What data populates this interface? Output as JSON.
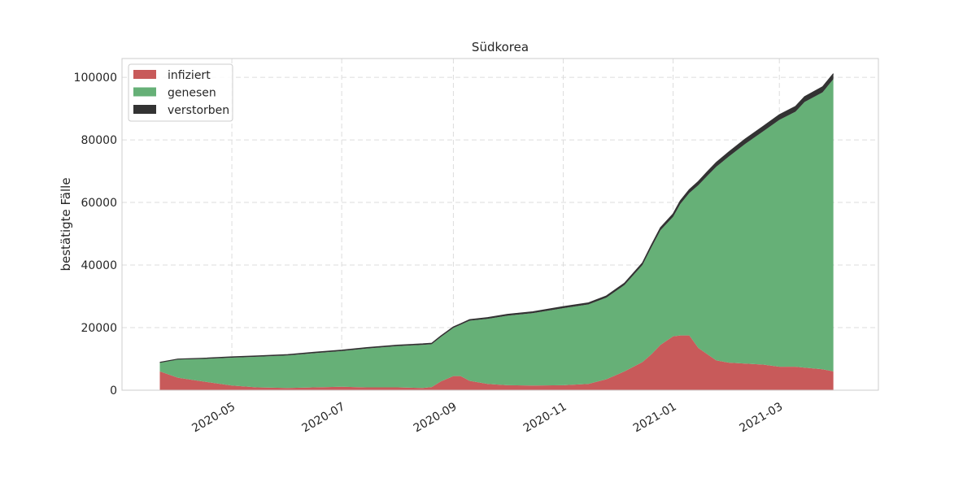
{
  "chart_data": {
    "type": "area",
    "stacked": true,
    "title": "Südkorea",
    "xlabel": "",
    "ylabel": "bestätigte Fälle",
    "x_range": [
      "2020-03-01",
      "2021-04-25"
    ],
    "ylim": [
      0,
      106000
    ],
    "yticks": [
      0,
      20000,
      40000,
      60000,
      80000,
      100000
    ],
    "ytick_labels": [
      "0",
      "20000",
      "40000",
      "60000",
      "80000",
      "100000"
    ],
    "xticks": [
      "2020-05-01",
      "2020-07-01",
      "2020-09-01",
      "2020-11-01",
      "2021-01-01",
      "2021-03-01"
    ],
    "xtick_labels": [
      "2020-05",
      "2020-07",
      "2020-09",
      "2020-11",
      "2021-01",
      "2021-03"
    ],
    "grid": true,
    "legend_position": "top-left",
    "dates": [
      "2020-03-22",
      "2020-04-01",
      "2020-04-15",
      "2020-05-01",
      "2020-05-15",
      "2020-06-01",
      "2020-06-15",
      "2020-07-01",
      "2020-07-15",
      "2020-08-01",
      "2020-08-15",
      "2020-08-20",
      "2020-08-25",
      "2020-09-01",
      "2020-09-05",
      "2020-09-10",
      "2020-09-20",
      "2020-10-01",
      "2020-10-15",
      "2020-11-01",
      "2020-11-15",
      "2020-11-25",
      "2020-12-05",
      "2020-12-15",
      "2020-12-20",
      "2020-12-25",
      "2021-01-01",
      "2021-01-05",
      "2021-01-10",
      "2021-01-15",
      "2021-01-20",
      "2021-01-25",
      "2021-02-01",
      "2021-02-10",
      "2021-02-20",
      "2021-03-01",
      "2021-03-10",
      "2021-03-15",
      "2021-03-25",
      "2021-03-31"
    ],
    "series": [
      {
        "name": "infiziert",
        "color": "#c85a5a",
        "values": [
          6000,
          4000,
          2800,
          1500,
          900,
          700,
          900,
          1100,
          900,
          900,
          700,
          1000,
          2800,
          4500,
          4500,
          3000,
          2000,
          1600,
          1500,
          1600,
          2000,
          3500,
          6000,
          9000,
          11500,
          14500,
          17200,
          17500,
          17500,
          13500,
          11500,
          9500,
          8800,
          8500,
          8200,
          7500,
          7500,
          7200,
          6700,
          6000
        ]
      },
      {
        "name": "genesen",
        "color": "#66b077",
        "values": [
          2800,
          5800,
          7200,
          8900,
          9800,
          10400,
          10900,
          11400,
          12400,
          13200,
          13800,
          13700,
          14200,
          15400,
          16400,
          19200,
          20800,
          22200,
          23100,
          24600,
          25400,
          26100,
          27600,
          31000,
          34200,
          36600,
          38200,
          42000,
          45500,
          52000,
          57000,
          61900,
          65900,
          70200,
          74500,
          78900,
          81500,
          84900,
          88500,
          93400
        ]
      },
      {
        "name": "verstorben",
        "color": "#333333",
        "values": [
          100,
          150,
          200,
          250,
          260,
          270,
          280,
          290,
          300,
          300,
          300,
          310,
          320,
          330,
          340,
          360,
          390,
          420,
          450,
          490,
          510,
          530,
          600,
          700,
          750,
          850,
          950,
          1000,
          1100,
          1200,
          1300,
          1400,
          1450,
          1550,
          1600,
          1650,
          1700,
          1700,
          1750,
          1750
        ]
      }
    ]
  }
}
